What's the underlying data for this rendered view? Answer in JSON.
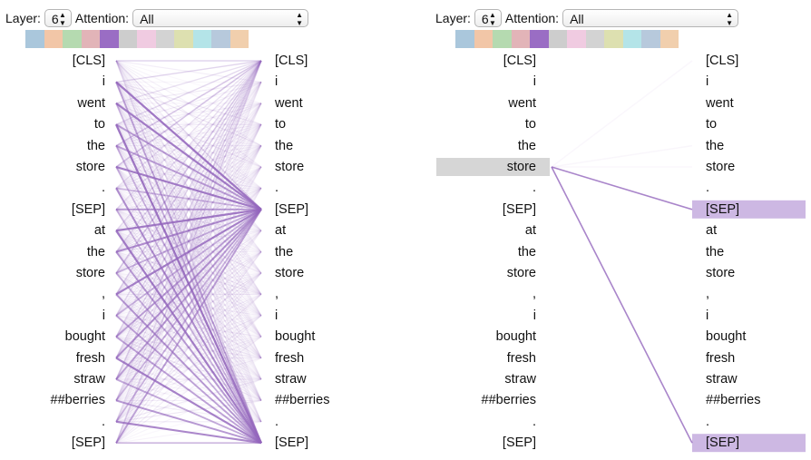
{
  "left_panel": {
    "layer_label": "Layer:",
    "layer_value": "6",
    "attention_label": "Attention:",
    "attention_value": "All"
  },
  "right_panel": {
    "layer_label": "Layer:",
    "layer_value": "6",
    "attention_label": "Attention:",
    "attention_value": "All"
  },
  "head_colors": [
    "#aac7dc",
    "#f2c6a7",
    "#b5dab0",
    "#e2b4b8",
    "#9a6dc4",
    "#cdcdcd",
    "#f0cbe1",
    "#d3d3d3",
    "#dde0b0",
    "#b4e4e8",
    "#b7c9dc",
    "#f1cfad"
  ],
  "accent_color": "#9467bd",
  "highlight_left_color": "#d6d6d6",
  "highlight_right_color": "#cdb8e3",
  "tokens": [
    "[CLS]",
    "i",
    "went",
    "to",
    "the",
    "store",
    ".",
    "[SEP]",
    "at",
    "the",
    "store",
    ",",
    "i",
    "bought",
    "fresh",
    "straw",
    "##berries",
    ".",
    "[SEP]"
  ],
  "right_view": {
    "selected_left_token": 5,
    "highlighted_right_tokens": [
      7,
      18
    ]
  }
}
